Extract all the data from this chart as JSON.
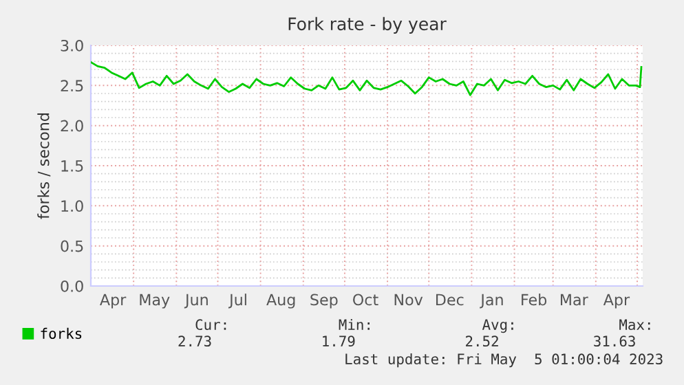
{
  "chart_data": {
    "type": "line",
    "title": "Fork rate - by year",
    "ylabel": "forks / second",
    "x": [
      "2022-03-31",
      "2022-04-05",
      "2022-04-10",
      "2022-04-15",
      "2022-04-20",
      "2022-04-25",
      "2022-04-30",
      "2022-05-05",
      "2022-05-10",
      "2022-05-15",
      "2022-05-20",
      "2022-05-25",
      "2022-05-30",
      "2022-06-04",
      "2022-06-09",
      "2022-06-14",
      "2022-06-19",
      "2022-06-24",
      "2022-06-29",
      "2022-07-04",
      "2022-07-09",
      "2022-07-14",
      "2022-07-19",
      "2022-07-24",
      "2022-07-29",
      "2022-08-03",
      "2022-08-08",
      "2022-08-13",
      "2022-08-18",
      "2022-08-23",
      "2022-08-28",
      "2022-09-02",
      "2022-09-07",
      "2022-09-12",
      "2022-09-17",
      "2022-09-22",
      "2022-09-27",
      "2022-10-02",
      "2022-10-07",
      "2022-10-12",
      "2022-10-17",
      "2022-10-22",
      "2022-10-27",
      "2022-11-01",
      "2022-11-06",
      "2022-11-11",
      "2022-11-16",
      "2022-11-21",
      "2022-11-26",
      "2022-12-01",
      "2022-12-06",
      "2022-12-11",
      "2022-12-16",
      "2022-12-21",
      "2022-12-26",
      "2022-12-31",
      "2023-01-05",
      "2023-01-10",
      "2023-01-15",
      "2023-01-20",
      "2023-01-25",
      "2023-01-30",
      "2023-02-04",
      "2023-02-09",
      "2023-02-14",
      "2023-02-19",
      "2023-02-24",
      "2023-03-01",
      "2023-03-06",
      "2023-03-11",
      "2023-03-16",
      "2023-03-21",
      "2023-03-26",
      "2023-03-31",
      "2023-04-05",
      "2023-04-10",
      "2023-04-15",
      "2023-04-20",
      "2023-04-25",
      "2023-04-30",
      "2023-05-03",
      "2023-05-04"
    ],
    "series": [
      {
        "name": "forks",
        "color": "#00cc00",
        "values": [
          2.79,
          2.74,
          2.72,
          2.66,
          2.62,
          2.58,
          2.66,
          2.47,
          2.52,
          2.55,
          2.5,
          2.62,
          2.52,
          2.56,
          2.64,
          2.55,
          2.5,
          2.46,
          2.58,
          2.48,
          2.42,
          2.46,
          2.52,
          2.47,
          2.58,
          2.52,
          2.5,
          2.53,
          2.49,
          2.6,
          2.52,
          2.46,
          2.44,
          2.5,
          2.46,
          2.6,
          2.45,
          2.47,
          2.56,
          2.44,
          2.56,
          2.47,
          2.45,
          2.48,
          2.52,
          2.56,
          2.49,
          2.4,
          2.48,
          2.6,
          2.55,
          2.58,
          2.52,
          2.5,
          2.55,
          2.38,
          2.52,
          2.5,
          2.58,
          2.44,
          2.57,
          2.53,
          2.55,
          2.52,
          2.62,
          2.52,
          2.48,
          2.5,
          2.45,
          2.57,
          2.44,
          2.58,
          2.52,
          2.47,
          2.54,
          2.64,
          2.46,
          2.58,
          2.5,
          2.5,
          2.48,
          2.73
        ]
      }
    ],
    "xlim": [
      "2022-03-31",
      "2023-05-05"
    ],
    "xticks": [
      {
        "value": "2022-04-16",
        "label": "Apr"
      },
      {
        "value": "2022-05-01",
        "label": null
      },
      {
        "value": "2022-05-16",
        "label": "May"
      },
      {
        "value": "2022-06-01",
        "label": null
      },
      {
        "value": "2022-06-16",
        "label": "Jun"
      },
      {
        "value": "2022-07-01",
        "label": null
      },
      {
        "value": "2022-07-16",
        "label": "Jul"
      },
      {
        "value": "2022-08-01",
        "label": null
      },
      {
        "value": "2022-08-16",
        "label": "Aug"
      },
      {
        "value": "2022-09-01",
        "label": null
      },
      {
        "value": "2022-09-16",
        "label": "Sep"
      },
      {
        "value": "2022-10-01",
        "label": null
      },
      {
        "value": "2022-10-16",
        "label": "Oct"
      },
      {
        "value": "2022-11-01",
        "label": null
      },
      {
        "value": "2022-11-16",
        "label": "Nov"
      },
      {
        "value": "2022-12-01",
        "label": null
      },
      {
        "value": "2022-12-16",
        "label": "Dec"
      },
      {
        "value": "2023-01-01",
        "label": null
      },
      {
        "value": "2023-01-16",
        "label": "Jan"
      },
      {
        "value": "2023-02-01",
        "label": null
      },
      {
        "value": "2023-02-15",
        "label": "Feb"
      },
      {
        "value": "2023-03-01",
        "label": null
      },
      {
        "value": "2023-03-16",
        "label": "Mar"
      },
      {
        "value": "2023-04-01",
        "label": null
      },
      {
        "value": "2023-04-16",
        "label": "Apr"
      },
      {
        "value": "2023-05-01",
        "label": null
      }
    ],
    "ylim": [
      0,
      3.0
    ],
    "yticks": [
      {
        "value": 0,
        "label": "0.0"
      },
      {
        "value": 0.5,
        "label": "0.5"
      },
      {
        "value": 1.0,
        "label": "1.0"
      },
      {
        "value": 1.5,
        "label": "1.5"
      },
      {
        "value": 2.0,
        "label": "2.0"
      },
      {
        "value": 2.5,
        "label": "2.5"
      },
      {
        "value": 3.0,
        "label": "3.0"
      }
    ],
    "grid": true,
    "legend": "bottom left",
    "marker": "none",
    "line_style": "solid",
    "annotations": [
      "Cur:",
      "2.73",
      "Min:",
      "1.79",
      "Avg:",
      "2.52",
      "Max:",
      "31.63",
      "Last update: Fri May  5 01:00:04 2023"
    ]
  }
}
